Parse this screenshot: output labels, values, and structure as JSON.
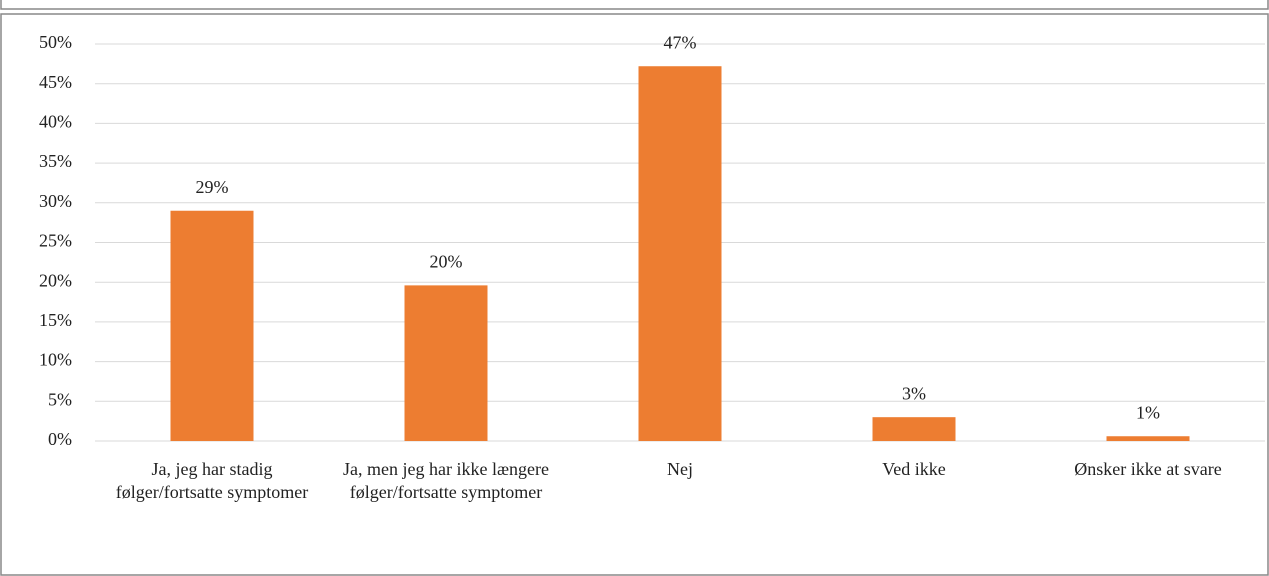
{
  "chart_data": {
    "type": "bar",
    "categories": [
      "Ja, jeg har stadig følger/fortsatte symptomer",
      "Ja, men jeg har ikke længere følger/fortsatte symptomer",
      "Nej",
      "Ved ikke",
      "Ønsker ikke at svare"
    ],
    "values": [
      29,
      19.6,
      47.2,
      3,
      0.6
    ],
    "value_labels": [
      "29%",
      "20%",
      "47%",
      "3%",
      "1%"
    ],
    "color": "#ed7d31",
    "ylim": [
      0,
      50
    ],
    "yticks": [
      {
        "value": 0,
        "label": "0%"
      },
      {
        "value": 5,
        "label": "5%"
      },
      {
        "value": 10,
        "label": "10%"
      },
      {
        "value": 15,
        "label": "15%"
      },
      {
        "value": 20,
        "label": "20%"
      },
      {
        "value": 25,
        "label": "25%"
      },
      {
        "value": 30,
        "label": "30%"
      },
      {
        "value": 35,
        "label": "35%"
      },
      {
        "value": 40,
        "label": "40%"
      },
      {
        "value": 45,
        "label": "45%"
      },
      {
        "value": 50,
        "label": "50%"
      }
    ],
    "grid": true
  }
}
